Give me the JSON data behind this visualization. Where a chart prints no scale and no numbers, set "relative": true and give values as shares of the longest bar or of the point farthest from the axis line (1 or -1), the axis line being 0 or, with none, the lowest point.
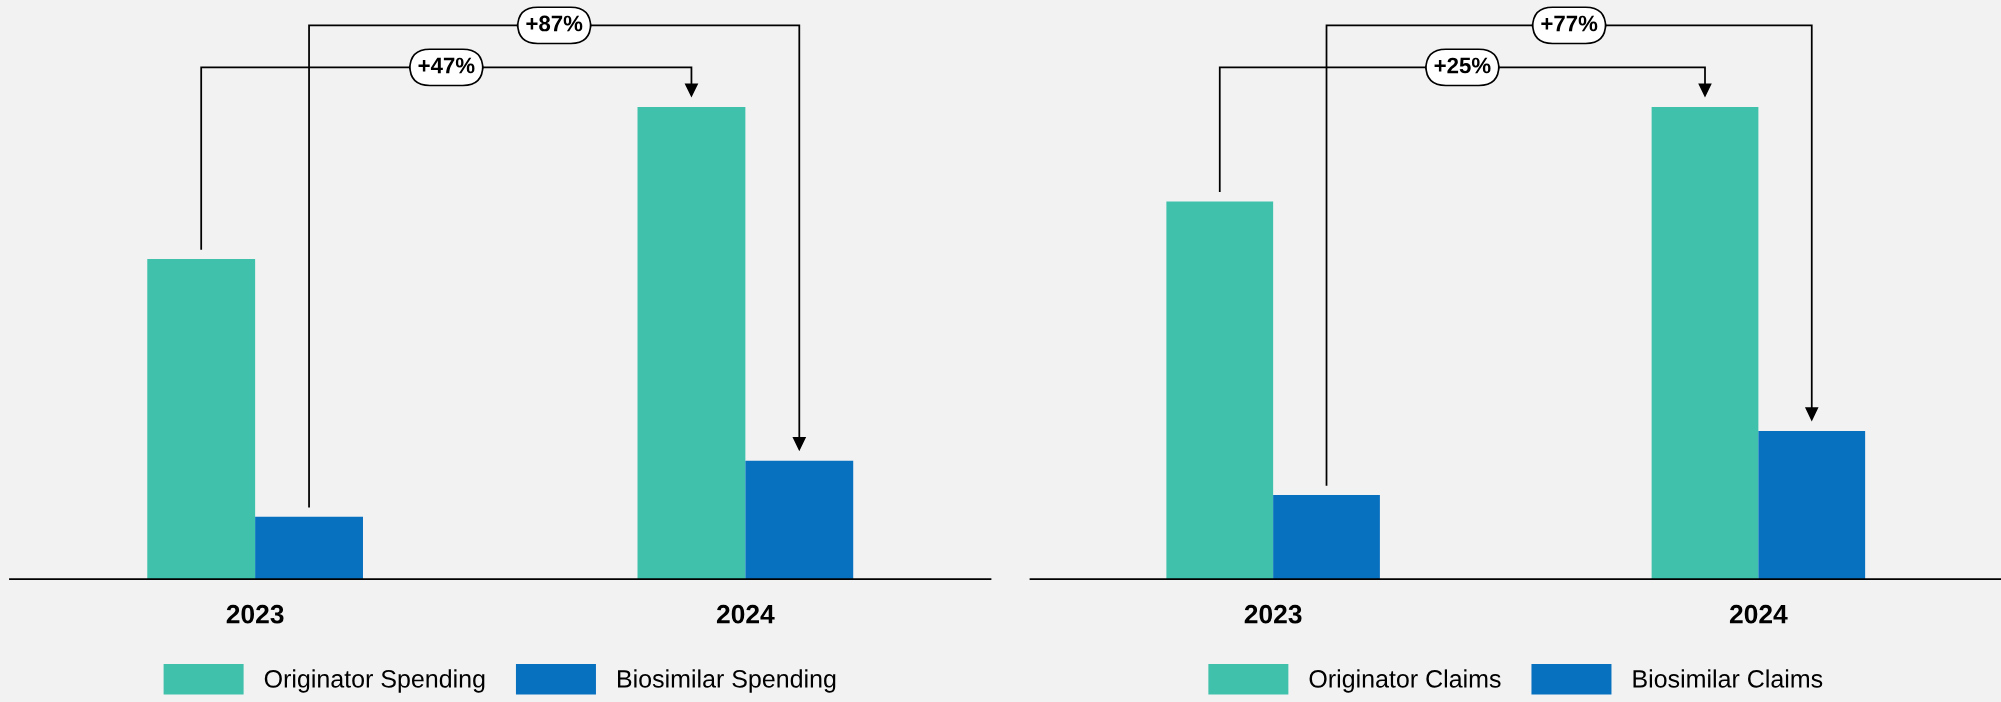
{
  "chart_data": [
    {
      "type": "bar",
      "relative": true,
      "categories": [
        "2023",
        "2024"
      ],
      "series": [
        {
          "name": "Originator Spending",
          "color": "#40c1ac",
          "values": [
            0.678,
            1.0
          ]
        },
        {
          "name": "Biosimilar Spending",
          "color": "#0770bf",
          "values": [
            0.132,
            0.251
          ]
        }
      ],
      "annotations": [
        "+47%",
        "+87%"
      ],
      "legend": "bottom",
      "grid": false
    },
    {
      "type": "bar",
      "relative": true,
      "categories": [
        "2023",
        "2024"
      ],
      "series": [
        {
          "name": "Originator Claims",
          "color": "#40c1ac",
          "values": [
            0.8,
            1.0
          ]
        },
        {
          "name": "Biosimilar Claims",
          "color": "#0770bf",
          "values": [
            0.178,
            0.314
          ]
        }
      ],
      "annotations": [
        "+25%",
        "+77%"
      ],
      "legend": "bottom",
      "grid": false
    }
  ]
}
